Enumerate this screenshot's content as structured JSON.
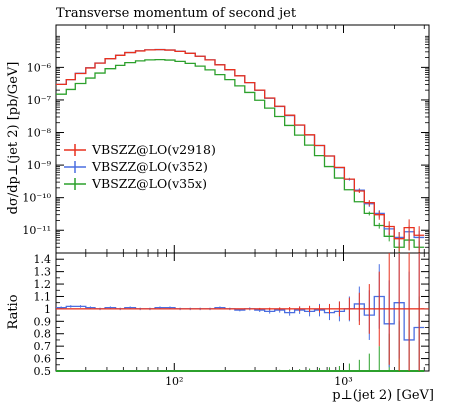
{
  "chart_data": {
    "type": "line",
    "title": "Transverse momentum of second jet",
    "ylabel": "dσ/dp⊥(jet 2) [pb/GeV]",
    "xlabel": "p⊥(jet 2) [GeV]",
    "ratio_ylabel": "Ratio",
    "x_scale": "log",
    "y_scale": "log",
    "xlim": [
      20,
      3200
    ],
    "ylim": [
      2e-12,
      2e-05
    ],
    "ratio_ylim": [
      0.5,
      1.45
    ],
    "x_tick_labels": [
      "10²",
      "10³"
    ],
    "x_tick_values": [
      100,
      1000
    ],
    "y_tick_labels": [
      "10⁻¹¹",
      "10⁻¹⁰",
      "10⁻⁹",
      "10⁻⁸",
      "10⁻⁷",
      "10⁻⁶"
    ],
    "y_tick_values": [
      1e-11,
      1e-10,
      1e-09,
      1e-08,
      1e-07,
      1e-06
    ],
    "ratio_tick_labels": [
      "0.5",
      "0.6",
      "0.7",
      "0.8",
      "0.9",
      "1",
      "1.1",
      "1.2",
      "1.3",
      "1.4"
    ],
    "ratio_tick_values": [
      0.5,
      0.6,
      0.7,
      0.8,
      0.9,
      1.0,
      1.1,
      1.2,
      1.3,
      1.4
    ],
    "legend_position": "middle-left",
    "colors": {
      "v2918": "#e8311e",
      "v352": "#4a6ee0",
      "v35x": "#2ca02c"
    },
    "x_edges": [
      20,
      23,
      26,
      30,
      34,
      39,
      45,
      51,
      59,
      67,
      77,
      88,
      101,
      116,
      133,
      152,
      174,
      199,
      228,
      261,
      299,
      342,
      392,
      449,
      514,
      589,
      674,
      772,
      884,
      1012,
      1159,
      1327,
      1520,
      1740,
      1993,
      2282,
      2613,
      3000
    ],
    "series": [
      {
        "name": "VBSZZ@LO(v2918)",
        "key": "v2918",
        "values": [
          3e-07,
          4.2e-07,
          6.5e-07,
          9.6e-07,
          1.35e-06,
          1.85e-06,
          2.35e-06,
          2.85e-06,
          3.2e-06,
          3.45e-06,
          3.5e-06,
          3.4e-06,
          3.1e-06,
          2.7e-06,
          2.2e-06,
          1.7e-06,
          1.2e-06,
          8.5e-07,
          5.5e-07,
          3.4e-07,
          2e-07,
          1.15e-07,
          6.4e-08,
          3.4e-08,
          1.7e-08,
          8.5e-09,
          4e-09,
          1.9e-09,
          8.5e-10,
          3.7e-10,
          1.6e-10,
          7e-11,
          3e-11,
          1.3e-11,
          5.5e-12,
          1.2e-11,
          7e-12
        ],
        "ratio": [
          1.0,
          1.0,
          1.0,
          1.0,
          1.0,
          1.0,
          1.0,
          1.0,
          1.0,
          1.0,
          1.0,
          1.0,
          1.0,
          1.0,
          1.0,
          1.0,
          1.0,
          1.0,
          1.0,
          1.0,
          1.0,
          1.0,
          1.0,
          1.0,
          1.0,
          1.0,
          1.0,
          1.0,
          1.0,
          1.0,
          1.0,
          1.0,
          1.0,
          1.0,
          1.0,
          1.0,
          1.0
        ],
        "ratio_err": [
          0.005,
          0.005,
          0.005,
          0.005,
          0.005,
          0.005,
          0.005,
          0.005,
          0.005,
          0.005,
          0.005,
          0.005,
          0.005,
          0.005,
          0.005,
          0.005,
          0.005,
          0.005,
          0.006,
          0.007,
          0.008,
          0.01,
          0.012,
          0.015,
          0.02,
          0.025,
          0.03,
          0.04,
          0.06,
          0.09,
          0.13,
          0.2,
          0.3,
          0.45,
          0.6,
          0.8,
          0.9
        ]
      },
      {
        "name": "VBSZZ@LO(v352)",
        "key": "v352",
        "values": [
          3e-07,
          4.2e-07,
          6.6e-07,
          9.7e-07,
          1.36e-06,
          1.86e-06,
          2.35e-06,
          2.86e-06,
          3.21e-06,
          3.45e-06,
          3.52e-06,
          3.41e-06,
          3.12e-06,
          2.7e-06,
          2.2e-06,
          1.7e-06,
          1.21e-06,
          8.5e-07,
          5.5e-07,
          3.4e-07,
          1.99e-07,
          1.13e-07,
          6.3e-08,
          3.3e-08,
          1.69e-08,
          8.4e-09,
          4e-09,
          1.9e-09,
          8.3e-10,
          3.7e-10,
          1.7e-10,
          6.5e-11,
          3.3e-11,
          1.1e-11,
          6e-12,
          9e-12,
          6e-12
        ],
        "ratio": [
          1.01,
          1.02,
          1.02,
          1.01,
          1.0,
          1.01,
          1.0,
          1.01,
          1.0,
          1.0,
          1.01,
          1.01,
          1.0,
          1.0,
          1.0,
          1.0,
          1.01,
          1.0,
          0.99,
          1.0,
          0.99,
          0.98,
          0.99,
          0.97,
          0.99,
          0.98,
          0.99,
          0.97,
          0.98,
          1.0,
          1.04,
          0.95,
          1.1,
          0.88,
          1.05,
          0.75,
          0.85
        ],
        "ratio_err": [
          0.01,
          0.01,
          0.01,
          0.01,
          0.01,
          0.01,
          0.01,
          0.01,
          0.01,
          0.01,
          0.01,
          0.01,
          0.01,
          0.01,
          0.01,
          0.01,
          0.01,
          0.01,
          0.01,
          0.012,
          0.015,
          0.018,
          0.02,
          0.025,
          0.03,
          0.04,
          0.05,
          0.06,
          0.08,
          0.1,
          0.14,
          0.2,
          0.26,
          0.35,
          0.45,
          0.55,
          0.6
        ]
      },
      {
        "name": "VBSZZ@LO(v35x)",
        "key": "v35x",
        "values": [
          1.5e-07,
          2.1e-07,
          3.2e-07,
          4.7e-07,
          6.7e-07,
          9.1e-07,
          1.15e-06,
          1.4e-06,
          1.58e-06,
          1.7e-06,
          1.73e-06,
          1.68e-06,
          1.53e-06,
          1.33e-06,
          1.09e-06,
          8.4e-07,
          6e-07,
          4.2e-07,
          2.7e-07,
          1.7e-07,
          9.8e-08,
          5.6e-08,
          3.1e-08,
          1.65e-08,
          8.3e-09,
          4.1e-09,
          1.95e-09,
          9e-10,
          4e-10,
          1.75e-10,
          7.5e-11,
          3.3e-11,
          1.4e-11,
          6.5e-12,
          3e-12,
          5e-12,
          3e-12
        ],
        "ratio": [
          0.5,
          0.5,
          0.5,
          0.5,
          0.5,
          0.5,
          0.5,
          0.5,
          0.5,
          0.5,
          0.5,
          0.5,
          0.5,
          0.5,
          0.5,
          0.5,
          0.5,
          0.5,
          0.5,
          0.5,
          0.5,
          0.5,
          0.5,
          0.5,
          0.5,
          0.5,
          0.5,
          0.5,
          0.5,
          0.5,
          0.5,
          0.5,
          0.5,
          0.5,
          0.5,
          0.5,
          0.5
        ],
        "ratio_err": [
          0.005,
          0.005,
          0.005,
          0.005,
          0.005,
          0.005,
          0.005,
          0.005,
          0.005,
          0.005,
          0.005,
          0.005,
          0.005,
          0.005,
          0.005,
          0.005,
          0.005,
          0.005,
          0.005,
          0.006,
          0.007,
          0.008,
          0.01,
          0.012,
          0.015,
          0.02,
          0.025,
          0.03,
          0.04,
          0.06,
          0.09,
          0.14,
          0.2,
          0.3,
          0.4,
          0.5,
          0.6
        ]
      }
    ]
  }
}
